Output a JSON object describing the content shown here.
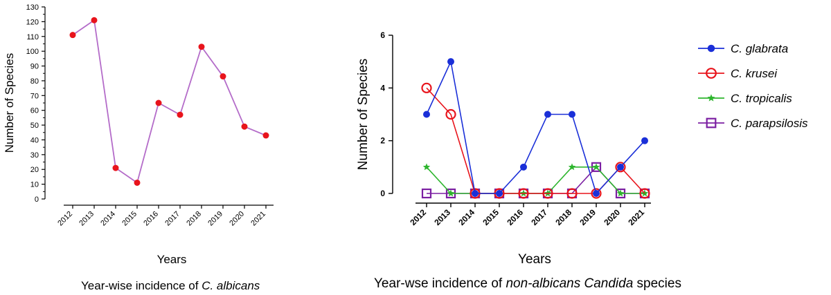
{
  "colors": {
    "albicans_line": "#b46cc9",
    "albicans_marker": "#e8141c",
    "glabrata": "#1a2fd8",
    "krusei": "#e8141c",
    "tropicalis": "#2db52d",
    "parapsilosis": "#7b1fa2",
    "axis": "#000000"
  },
  "chart_data": [
    {
      "type": "line",
      "xlabel": "Years",
      "ylabel": "Number of Species",
      "ylim": [
        0,
        130
      ],
      "yticks": [
        0,
        10,
        20,
        30,
        40,
        50,
        60,
        70,
        80,
        90,
        100,
        110,
        120,
        130
      ],
      "categories": [
        "2012",
        "2013",
        "2014",
        "2015",
        "2016",
        "2017",
        "2018",
        "2019",
        "2020",
        "2021"
      ],
      "series": [
        {
          "name": "C. albicans",
          "values": [
            111,
            121,
            21,
            11,
            65,
            57,
            103,
            83,
            49,
            43
          ]
        }
      ],
      "caption": {
        "prefix": "Year-wise incidence of ",
        "italic": "C. albicans",
        "suffix": ""
      }
    },
    {
      "type": "line",
      "xlabel": "Years",
      "ylabel": "Number of Species",
      "ylim": [
        0,
        6
      ],
      "yticks": [
        0,
        2,
        4,
        6
      ],
      "categories": [
        "2012",
        "2013",
        "2014",
        "2015",
        "2016",
        "2017",
        "2018",
        "2019",
        "2020",
        "2021"
      ],
      "series": [
        {
          "name": "C. glabrata",
          "marker": "filled-circle",
          "values": [
            3,
            5,
            0,
            0,
            1,
            3,
            3,
            0,
            1,
            2
          ]
        },
        {
          "name": "C. krusei",
          "marker": "open-circle",
          "values": [
            4,
            3,
            0,
            0,
            0,
            0,
            0,
            0,
            1,
            0
          ]
        },
        {
          "name": "C. tropicalis",
          "marker": "star",
          "values": [
            1,
            0,
            0,
            0,
            0,
            0,
            1,
            1,
            0,
            0
          ]
        },
        {
          "name": "C. parapsilosis",
          "marker": "open-square",
          "values": [
            0,
            0,
            0,
            0,
            0,
            0,
            0,
            1,
            0,
            0
          ]
        }
      ],
      "legend_position": "right",
      "caption": {
        "prefix": "Year-wse incidence of ",
        "italic": "non-albicans Candida",
        "suffix": " species"
      }
    }
  ]
}
